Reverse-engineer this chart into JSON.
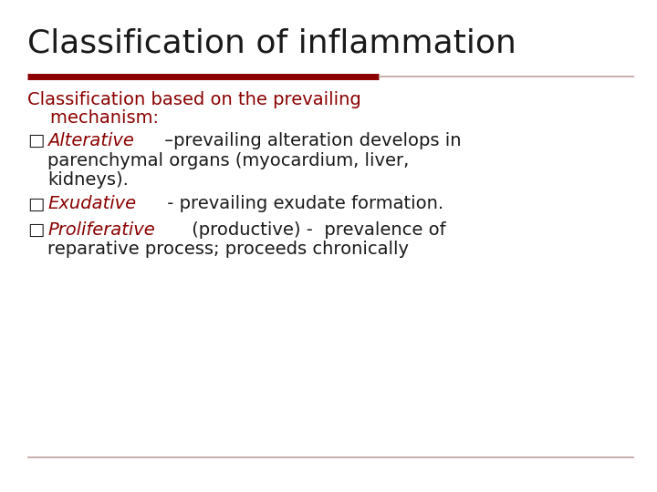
{
  "title": "Classification of inflammation",
  "title_color": "#1a1a1a",
  "title_fontsize": 26,
  "background_color": "#ffffff",
  "red_color": "#8B0000",
  "line_thick_color": "#8B0000",
  "line_thin_color": "#c0a0a0",
  "subtitle_line1": "Classification based on the prevailing",
  "subtitle_line2": "    mechanism:",
  "subtitle_color": "#8B0000",
  "subtitle_fontsize": 14,
  "bullet_fontsize": 14,
  "dark_color": "#1a1a1a",
  "footer_line_color": "#c0a0a0",
  "bullet_char": "□",
  "bullet_items": [
    {
      "italic_part": "Alterative",
      "normal_part": " –prevailing alteration develops in",
      "line2": "parenchymal organs (myocardium, liver,",
      "line3": "kidneys).",
      "italic_color": "#8B0000",
      "normal_color": "#1a1a1a"
    },
    {
      "italic_part": "Exudative",
      "normal_part": " - prevailing exudate formation.",
      "line2": "",
      "line3": "",
      "italic_color": "#8B0000",
      "normal_color": "#1a1a1a"
    },
    {
      "italic_part": "Proliferative",
      "normal_part": " (productive) -  prevalence of",
      "line2": "reparative process; proceeds chronically",
      "line3": "",
      "italic_color": "#8B0000",
      "normal_color": "#1a1a1a"
    }
  ]
}
